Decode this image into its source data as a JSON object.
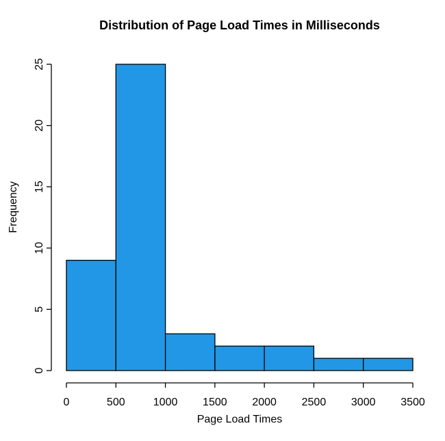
{
  "chart_data": {
    "type": "bar",
    "subtype": "histogram",
    "title": "Distribution of Page Load Times in Milliseconds",
    "xlabel": "Page Load Times",
    "ylabel": "Frequency",
    "bin_edges": [
      0,
      500,
      1000,
      1500,
      2000,
      2500,
      3000,
      3500
    ],
    "values": [
      9,
      25,
      3,
      2,
      2,
      1,
      1
    ],
    "x_ticks": [
      0,
      500,
      1000,
      1500,
      2000,
      2500,
      3000,
      3500
    ],
    "y_ticks": [
      0,
      5,
      10,
      15,
      20,
      25
    ],
    "xlim": [
      0,
      3500
    ],
    "ylim": [
      0,
      25
    ],
    "grid": false,
    "legend": false,
    "bar_fill": "#2297E6",
    "bar_stroke": "#000000",
    "axis_color": "#000000",
    "background": "#FFFFFF"
  }
}
